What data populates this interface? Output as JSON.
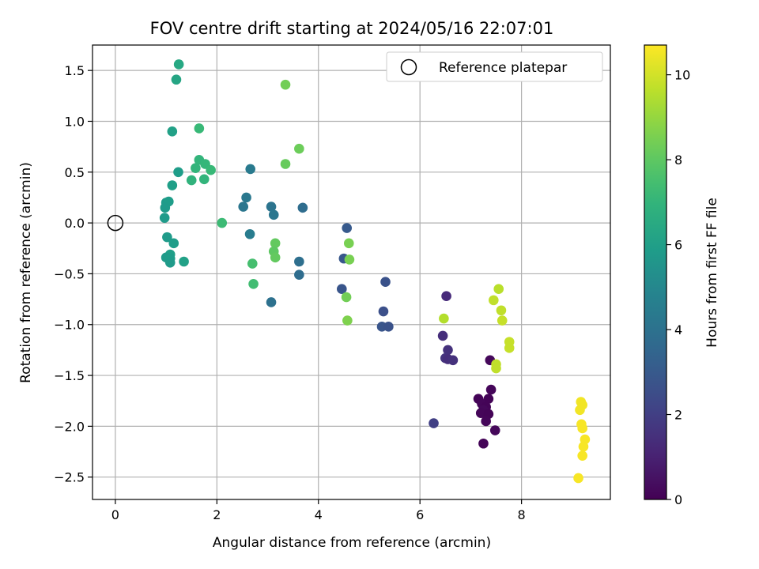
{
  "chart_data": {
    "type": "scatter",
    "title": "FOV centre drift starting at 2024/05/16 22:07:01",
    "xlabel": "Angular distance from reference (arcmin)",
    "ylabel": "Rotation from reference (arcmin)",
    "xlim": [
      -0.45,
      9.75
    ],
    "ylim": [
      -2.72,
      1.75
    ],
    "xticks": [
      0,
      2,
      4,
      6,
      8
    ],
    "xtick_labels": [
      "0",
      "2",
      "4",
      "6",
      "8"
    ],
    "yticks": [
      -2.5,
      -2.0,
      -1.5,
      -1.0,
      -0.5,
      0.0,
      0.5,
      1.0,
      1.5
    ],
    "ytick_labels": [
      "−2.5",
      "−2.0",
      "−1.5",
      "−1.0",
      "−0.5",
      "0.0",
      "0.5",
      "1.0",
      "1.5"
    ],
    "grid": true,
    "legend": {
      "placement": "top-right",
      "entries": [
        "Reference platepar"
      ]
    },
    "reference_point": {
      "x": 0,
      "y": 0,
      "label": "Reference platepar"
    },
    "colorbar": {
      "label": "Hours from first FF file",
      "colormap": "viridis",
      "range": [
        0,
        10.7
      ],
      "ticks": [
        0,
        2,
        4,
        6,
        8,
        10
      ],
      "tick_labels": [
        "0",
        "2",
        "4",
        "6",
        "8",
        "10"
      ]
    },
    "points": [
      {
        "x": 7.38,
        "y": -1.35,
        "c": 0.2
      },
      {
        "x": 7.4,
        "y": -1.64,
        "c": 0.15
      },
      {
        "x": 7.15,
        "y": -1.73,
        "c": 0.1
      },
      {
        "x": 7.35,
        "y": -1.73,
        "c": 0.1
      },
      {
        "x": 7.22,
        "y": -1.78,
        "c": 0.15
      },
      {
        "x": 7.3,
        "y": -1.81,
        "c": 0.1
      },
      {
        "x": 7.25,
        "y": -1.84,
        "c": 0.2
      },
      {
        "x": 7.2,
        "y": -1.87,
        "c": 0.15
      },
      {
        "x": 7.35,
        "y": -1.88,
        "c": 0.1
      },
      {
        "x": 7.3,
        "y": -1.95,
        "c": 0.15
      },
      {
        "x": 7.48,
        "y": -2.04,
        "c": 0.2
      },
      {
        "x": 7.25,
        "y": -2.17,
        "c": 0.1
      },
      {
        "x": 6.52,
        "y": -0.72,
        "c": 1.3
      },
      {
        "x": 6.45,
        "y": -1.11,
        "c": 1.4
      },
      {
        "x": 6.55,
        "y": -1.25,
        "c": 1.5
      },
      {
        "x": 6.5,
        "y": -1.33,
        "c": 1.6
      },
      {
        "x": 6.55,
        "y": -1.34,
        "c": 1.4
      },
      {
        "x": 6.65,
        "y": -1.35,
        "c": 1.5
      },
      {
        "x": 6.27,
        "y": -1.97,
        "c": 2.0
      },
      {
        "x": 4.56,
        "y": -0.05,
        "c": 3.0
      },
      {
        "x": 4.5,
        "y": -0.35,
        "c": 2.9
      },
      {
        "x": 4.46,
        "y": -0.65,
        "c": 2.8
      },
      {
        "x": 5.32,
        "y": -0.58,
        "c": 2.7
      },
      {
        "x": 5.28,
        "y": -0.87,
        "c": 2.6
      },
      {
        "x": 5.25,
        "y": -1.02,
        "c": 2.8
      },
      {
        "x": 5.38,
        "y": -1.02,
        "c": 2.7
      },
      {
        "x": 2.66,
        "y": 0.53,
        "c": 4.4
      },
      {
        "x": 2.58,
        "y": 0.25,
        "c": 4.3
      },
      {
        "x": 2.52,
        "y": 0.16,
        "c": 4.2
      },
      {
        "x": 3.07,
        "y": 0.16,
        "c": 4.1
      },
      {
        "x": 3.12,
        "y": 0.08,
        "c": 4.2
      },
      {
        "x": 3.69,
        "y": 0.15,
        "c": 3.8
      },
      {
        "x": 2.65,
        "y": -0.11,
        "c": 4.5
      },
      {
        "x": 3.62,
        "y": -0.38,
        "c": 3.9
      },
      {
        "x": 3.62,
        "y": -0.51,
        "c": 3.8
      },
      {
        "x": 3.07,
        "y": -0.78,
        "c": 4.0
      },
      {
        "x": 1.25,
        "y": 1.56,
        "c": 6.4
      },
      {
        "x": 1.2,
        "y": 1.41,
        "c": 6.3
      },
      {
        "x": 1.12,
        "y": 0.9,
        "c": 6.1
      },
      {
        "x": 1.24,
        "y": 0.5,
        "c": 5.9
      },
      {
        "x": 1.12,
        "y": 0.37,
        "c": 6.0
      },
      {
        "x": 1.0,
        "y": 0.2,
        "c": 5.8
      },
      {
        "x": 1.05,
        "y": 0.21,
        "c": 5.9
      },
      {
        "x": 0.98,
        "y": 0.15,
        "c": 5.8
      },
      {
        "x": 0.97,
        "y": 0.05,
        "c": 5.8
      },
      {
        "x": 1.02,
        "y": -0.14,
        "c": 5.8
      },
      {
        "x": 1.15,
        "y": -0.2,
        "c": 5.9
      },
      {
        "x": 1.08,
        "y": -0.31,
        "c": 6.0
      },
      {
        "x": 1.0,
        "y": -0.34,
        "c": 5.8
      },
      {
        "x": 1.08,
        "y": -0.35,
        "c": 5.9
      },
      {
        "x": 1.08,
        "y": -0.39,
        "c": 5.8
      },
      {
        "x": 1.35,
        "y": -0.38,
        "c": 6.1
      },
      {
        "x": 1.65,
        "y": 0.93,
        "c": 7.2
      },
      {
        "x": 1.65,
        "y": 0.62,
        "c": 7.0
      },
      {
        "x": 1.77,
        "y": 0.58,
        "c": 7.1
      },
      {
        "x": 1.58,
        "y": 0.54,
        "c": 7.0
      },
      {
        "x": 1.88,
        "y": 0.52,
        "c": 7.2
      },
      {
        "x": 1.5,
        "y": 0.42,
        "c": 6.9
      },
      {
        "x": 1.75,
        "y": 0.43,
        "c": 7.0
      },
      {
        "x": 2.1,
        "y": 0.0,
        "c": 7.3
      },
      {
        "x": 2.7,
        "y": -0.4,
        "c": 7.5
      },
      {
        "x": 2.72,
        "y": -0.6,
        "c": 7.4
      },
      {
        "x": 3.35,
        "y": 1.36,
        "c": 8.4
      },
      {
        "x": 3.62,
        "y": 0.73,
        "c": 8.3
      },
      {
        "x": 3.35,
        "y": 0.58,
        "c": 8.2
      },
      {
        "x": 3.15,
        "y": -0.2,
        "c": 8.1
      },
      {
        "x": 3.12,
        "y": -0.28,
        "c": 8.0
      },
      {
        "x": 3.15,
        "y": -0.34,
        "c": 8.1
      },
      {
        "x": 4.6,
        "y": -0.2,
        "c": 8.5
      },
      {
        "x": 4.61,
        "y": -0.36,
        "c": 8.5
      },
      {
        "x": 4.55,
        "y": -0.73,
        "c": 8.4
      },
      {
        "x": 4.57,
        "y": -0.96,
        "c": 8.6
      },
      {
        "x": 6.47,
        "y": -0.94,
        "c": 9.5
      },
      {
        "x": 7.55,
        "y": -0.65,
        "c": 9.6
      },
      {
        "x": 7.45,
        "y": -0.76,
        "c": 9.7
      },
      {
        "x": 7.6,
        "y": -0.86,
        "c": 9.7
      },
      {
        "x": 7.62,
        "y": -0.96,
        "c": 9.8
      },
      {
        "x": 7.76,
        "y": -1.17,
        "c": 9.8
      },
      {
        "x": 7.76,
        "y": -1.23,
        "c": 9.8
      },
      {
        "x": 7.5,
        "y": -1.39,
        "c": 9.7
      },
      {
        "x": 7.5,
        "y": -1.43,
        "c": 9.7
      },
      {
        "x": 9.17,
        "y": -1.76,
        "c": 10.5
      },
      {
        "x": 9.2,
        "y": -1.79,
        "c": 10.5
      },
      {
        "x": 9.15,
        "y": -1.84,
        "c": 10.5
      },
      {
        "x": 9.18,
        "y": -1.98,
        "c": 10.6
      },
      {
        "x": 9.2,
        "y": -2.02,
        "c": 10.6
      },
      {
        "x": 9.25,
        "y": -2.13,
        "c": 10.6
      },
      {
        "x": 9.22,
        "y": -2.2,
        "c": 10.6
      },
      {
        "x": 9.2,
        "y": -2.29,
        "c": 10.6
      },
      {
        "x": 9.12,
        "y": -2.51,
        "c": 10.6
      }
    ]
  }
}
